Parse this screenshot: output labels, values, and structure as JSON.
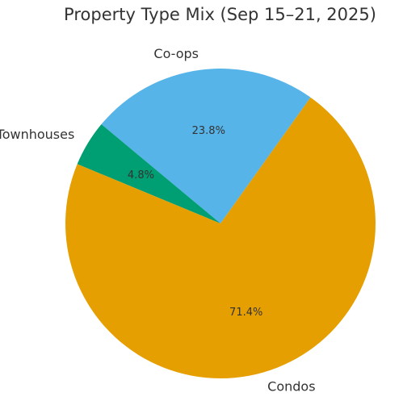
{
  "chart_data": {
    "type": "pie",
    "title": "Property Type Mix (Sep 15–21, 2025)",
    "slices": [
      {
        "label": "Co-ops",
        "pct_label": "23.8%",
        "value": 23.8,
        "color": "#56B4E9"
      },
      {
        "label": "Townhouses",
        "pct_label": "4.8%",
        "value": 4.8,
        "color": "#009E73"
      },
      {
        "label": "Condos",
        "pct_label": "71.4%",
        "value": 71.4,
        "color": "#E69F00"
      }
    ],
    "start_angle_deg": 54.5,
    "direction": "counterclockwise"
  }
}
